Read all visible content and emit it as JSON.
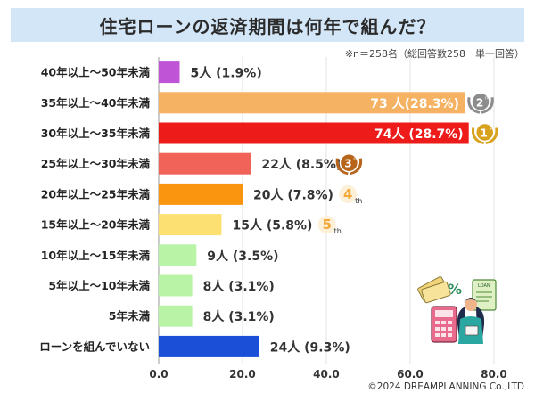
{
  "title": "住宅ローンの返済期間は何年で組んだ？",
  "note": "※n＝258名（総回答数258　単一回答）",
  "copyright": "©2024 DREAMPLANNING Co.,LTD",
  "chart_data": {
    "type": "bar",
    "orientation": "horizontal",
    "title": "住宅ローンの返済期間は何年で組んだ？",
    "categories": [
      "40年以上～50年未満",
      "35年以上～40年未満",
      "30年以上～35年未満",
      "25年以上～30年未満",
      "20年以上～25年未満",
      "15年以上～20年未満",
      "10年以上～15年未満",
      "5年以上～10年未満",
      "5年未満",
      "ローンを組んでいない"
    ],
    "values": [
      5,
      73,
      74,
      22,
      20,
      15,
      9,
      8,
      8,
      24
    ],
    "labels": [
      "5人  (1.9%)",
      "73 人(28.3%)",
      "74人 (28.7%)",
      "22人 (8.5%)",
      "20人  (7.8%)",
      "15人  (5.8%)",
      "9人  (3.5%)",
      "8人  (3.1%)",
      "8人  (3.1%)",
      "24人  (9.3%)"
    ],
    "label_inside": [
      false,
      true,
      true,
      false,
      false,
      false,
      false,
      false,
      false,
      false
    ],
    "colors": [
      "#c054d6",
      "#f4b262",
      "#ee1b1b",
      "#f16358",
      "#fa9510",
      "#fde072",
      "#b8f3a6",
      "#b8f3a6",
      "#b8f3a6",
      "#1b4fd8"
    ],
    "x_ticks": [
      "0.0",
      "20.0",
      "40.0",
      "60.0",
      "80.0"
    ],
    "xlim": [
      0,
      83
    ],
    "rank_badges": [
      {
        "category_index": 1,
        "rank": "2",
        "suffix": "nd",
        "color": "#8c8c8c"
      },
      {
        "category_index": 2,
        "rank": "1",
        "suffix": "st",
        "color": "#d9a21e"
      },
      {
        "category_index": 3,
        "rank": "3",
        "suffix": "rd",
        "color": "#b8651c"
      },
      {
        "category_index": 4,
        "rank": "4",
        "suffix": "th",
        "color": "#f2a93a"
      },
      {
        "category_index": 5,
        "rank": "5",
        "suffix": "th",
        "color": "#f2a93a"
      }
    ]
  },
  "illustration": {
    "name": "person-with-calculator-and-loan-documents",
    "doc_label": "LOAN",
    "percent_sign": "%"
  }
}
